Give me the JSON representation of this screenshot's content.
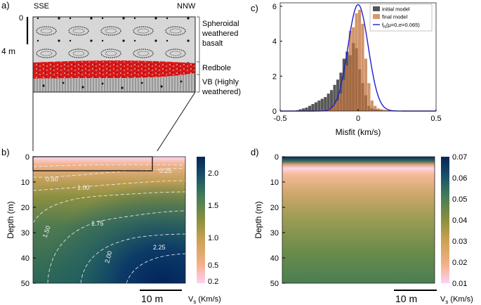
{
  "panel_a": {
    "label": "a)",
    "left_dir": "SSE",
    "right_dir": "NNW",
    "depth_zero": "0",
    "depth_scale": "4 m",
    "layers": [
      {
        "line1": "Spheroidal",
        "line2": "weathered",
        "line3": "basalt"
      },
      {
        "line1": "Redbole"
      },
      {
        "line1": "VB (Highly",
        "line2": "weathered)"
      }
    ]
  },
  "panel_b": {
    "label": "b)",
    "ylabel": "Depth (m)",
    "yticks": [
      "0",
      "10",
      "20",
      "30",
      "40",
      "50"
    ],
    "contours": [
      "0.25",
      "0.50",
      "1.00",
      "1.50",
      "1.75",
      "2.00",
      "2.25"
    ],
    "colorbar_ticks": [
      "2.0",
      "1.5",
      "1.0",
      "0.5",
      "0.2"
    ],
    "colorbar_label": "V",
    "colorbar_label_sub": "s",
    "colorbar_label_unit": " (Km/s)",
    "scalebar": "10 m",
    "colors": {
      "deep": "#062a5a",
      "mid": "#7a8a3a",
      "shallow": "#f0b08a",
      "surface": "#ffd0f0"
    }
  },
  "panel_c": {
    "label": "c)",
    "xlabel": "Misfit (km/s)",
    "legend": {
      "initial": "initial model",
      "final": "final model",
      "fit_prefix": "f",
      "fit_sub": "N",
      "fit_params": "(μ=0,σ=0.065)"
    },
    "colors": {
      "initial": "#3a3a3a",
      "final": "#c0703a",
      "fit": "#1f1fcc"
    }
  },
  "panel_d": {
    "label": "d)",
    "ylabel": "Depth (m)",
    "yticks": [
      "0",
      "10",
      "20",
      "30",
      "40",
      "50"
    ],
    "colorbar_ticks": [
      "0.07",
      "0.06",
      "0.05",
      "0.04",
      "0.03",
      "0.02",
      "0.01"
    ],
    "colorbar_label": "V",
    "colorbar_label_sub": "s",
    "colorbar_label_unit": " (Km/s)",
    "scalebar": "10 m"
  },
  "chart_data": {
    "type": "bar",
    "title": "",
    "xlabel": "Misfit (km/s)",
    "ylabel": "",
    "xlim": [
      -0.5,
      0.5
    ],
    "ylim": [
      0,
      6.2
    ],
    "xticks": [
      "-0.5",
      "0",
      "0.5"
    ],
    "yticks": [
      "0",
      "2",
      "4",
      "6"
    ],
    "bin_width": 0.02,
    "bin_starts": [
      -0.4,
      -0.38,
      -0.36,
      -0.34,
      -0.32,
      -0.3,
      -0.28,
      -0.26,
      -0.24,
      -0.22,
      -0.2,
      -0.18,
      -0.16,
      -0.14,
      -0.12,
      -0.1,
      -0.08,
      -0.06,
      -0.04,
      -0.02,
      0,
      0.02,
      0.04,
      0.06,
      0.08,
      0.1,
      0.12,
      0.14,
      0.16,
      0.18,
      0.2,
      0.22,
      0.24,
      0.26,
      0.28,
      0.3,
      0.32,
      0.34,
      0.36,
      0.38,
      0.4,
      0.42,
      0.44,
      0.46,
      0.48
    ],
    "series": [
      {
        "name": "initial model",
        "values": [
          0.05,
          0.1,
          0.15,
          0.2,
          0.3,
          0.4,
          0.5,
          0.6,
          0.7,
          0.8,
          1.0,
          1.2,
          1.5,
          1.8,
          2.2,
          3.0,
          3.4,
          3.2,
          3.9,
          3.6,
          2.4,
          1.6,
          0.9,
          0.3,
          0.15,
          0.1,
          0.08,
          0.06,
          0.05,
          0.04,
          0.03,
          0.03,
          0.02,
          0.02,
          0.02,
          0.01,
          0.01,
          0.01,
          0.01,
          0.01,
          0.01,
          0.01,
          0.01,
          0.01,
          0.01
        ]
      },
      {
        "name": "final model",
        "values": [
          0.0,
          0.0,
          0.0,
          0.0,
          0.01,
          0.02,
          0.03,
          0.05,
          0.08,
          0.1,
          0.15,
          0.2,
          0.4,
          0.6,
          1.0,
          1.8,
          2.6,
          4.6,
          4.8,
          5.6,
          5.8,
          5.0,
          3.0,
          1.6,
          0.6,
          0.3,
          0.15,
          0.1,
          0.06,
          0.04,
          0.03,
          0.02,
          0.02,
          0.02,
          0.01,
          0.01,
          0.01,
          0.01,
          0.0,
          0.0,
          0.0,
          0.0,
          0.0,
          0.0,
          0.0
        ]
      }
    ],
    "fit_curve": {
      "name": "fN(μ=0,σ=0.065)",
      "mu": 0,
      "sigma": 0.065,
      "peak": 6.1
    }
  }
}
